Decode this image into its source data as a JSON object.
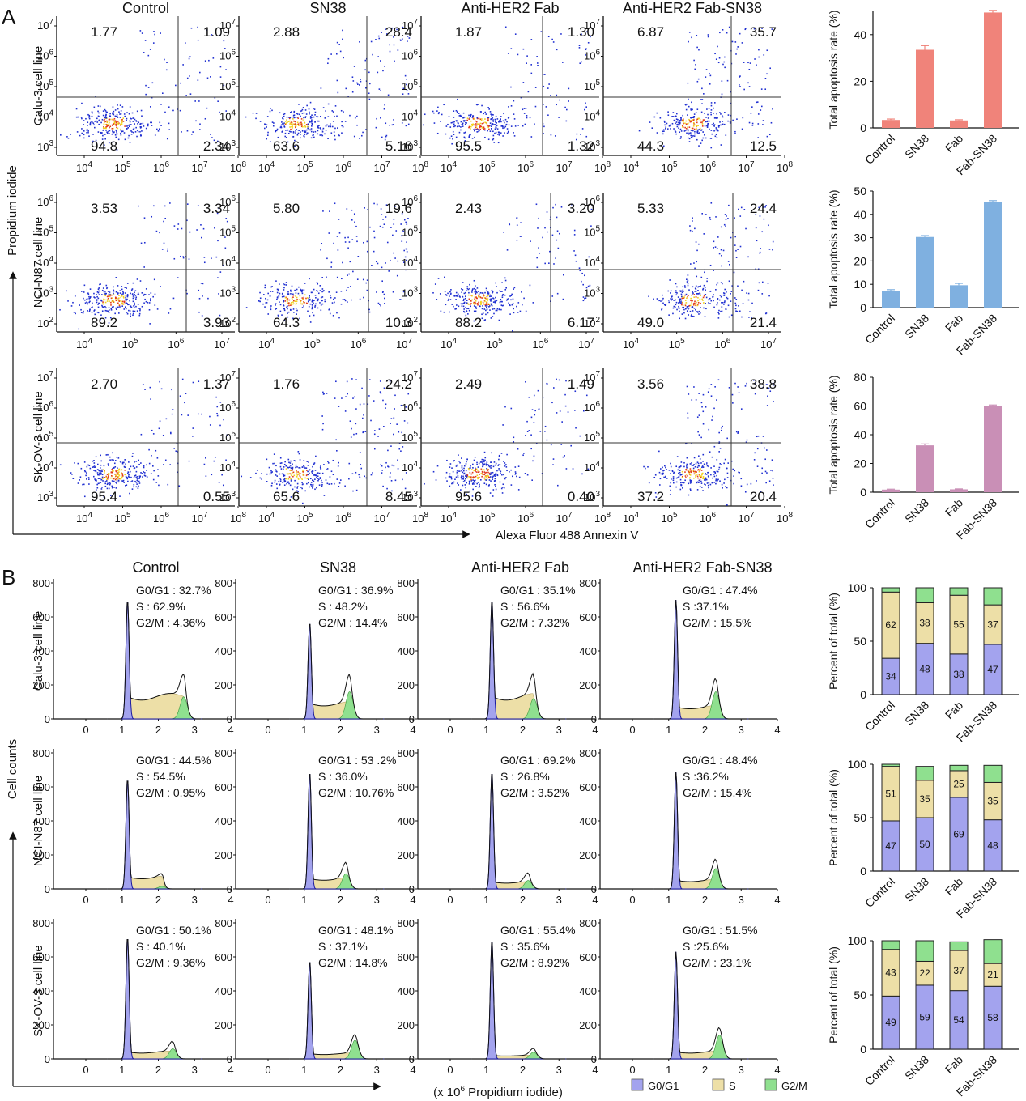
{
  "panel_a_letter": "A",
  "panel_b_letter": "B",
  "columns": [
    "Control",
    "SN38",
    "Anti-HER2 Fab",
    "Anti-HER2 Fab-SN38"
  ],
  "rows": [
    "Calu-3 cell line",
    "NCI-N87 cell line",
    "SK-OV-3 cell line"
  ],
  "colors": {
    "apoptosis": [
      "#f0837a",
      "#7fb0e0",
      "#c98fb6"
    ],
    "g0g1": "#a3a3ee",
    "s": "#eddfa7",
    "g2m": "#8fe08f",
    "dots": "#1f2fd1"
  },
  "flow": {
    "y_axis_title": "Propidium iodide",
    "x_axis_title": "Alexa Fluor 488 Annexin V",
    "x_ticks": [
      "10<sup>4</sup>",
      "10<sup>5</sup>",
      "10<sup>6</sup>",
      "10<sup>7</sup>",
      "10<sup>8</sup>"
    ],
    "rows": [
      {
        "y_ticks": [
          [
            "10",
            "7"
          ],
          [
            "10",
            "6"
          ],
          [
            "10",
            "5"
          ],
          [
            "10",
            "4"
          ],
          [
            "10",
            "3"
          ]
        ],
        "x_ticks": [
          [
            "10",
            "4"
          ],
          [
            "10",
            "5"
          ],
          [
            "10",
            "6"
          ],
          [
            "10",
            "7"
          ],
          [
            "10",
            "8"
          ]
        ],
        "panels": [
          {
            "ul": "1.77",
            "ur": "1.09",
            "ll": "94.8",
            "lr": "2.34"
          },
          {
            "ul": "2.88",
            "ur": "28.4",
            "ll": "63.6",
            "lr": "5.16"
          },
          {
            "ul": "1.87",
            "ur": "1.30",
            "ll": "95.5",
            "lr": "1.32"
          },
          {
            "ul": "6.87",
            "ur": "35.7",
            "ll": "44.3",
            "lr": "12.5"
          }
        ]
      },
      {
        "y_ticks": [
          [
            "10",
            "6"
          ],
          [
            "10",
            "5"
          ],
          [
            "10",
            "4"
          ],
          [
            "10",
            "3"
          ],
          [
            "10",
            "2"
          ]
        ],
        "x_ticks": [
          [
            "10",
            "4"
          ],
          [
            "10",
            "5"
          ],
          [
            "10",
            "6"
          ],
          [
            "10",
            "7"
          ]
        ],
        "panels": [
          {
            "ul": "3.53",
            "ur": "3.34",
            "ll": "89.2",
            "lr": "3.93"
          },
          {
            "ul": "5.80",
            "ur": "19.6",
            "ll": "64.3",
            "lr": "10.3"
          },
          {
            "ul": "2.43",
            "ur": "3.20",
            "ll": "88.2",
            "lr": "6.17"
          },
          {
            "ul": "5.33",
            "ur": "24.4",
            "ll": "49.0",
            "lr": "21.4"
          }
        ]
      },
      {
        "y_ticks": [
          [
            "10",
            "7"
          ],
          [
            "10",
            "6"
          ],
          [
            "10",
            "5"
          ],
          [
            "10",
            "4"
          ],
          [
            "10",
            "3"
          ]
        ],
        "x_ticks": [
          [
            "10",
            "4"
          ],
          [
            "10",
            "5"
          ],
          [
            "10",
            "6"
          ],
          [
            "10",
            "7"
          ],
          [
            "10",
            "8"
          ]
        ],
        "panels": [
          {
            "ul": "2.70",
            "ur": "1.37",
            "ll": "95.4",
            "lr": "0.55"
          },
          {
            "ul": "1.76",
            "ur": "24.2",
            "ll": "65.6",
            "lr": "8.45"
          },
          {
            "ul": "2.49",
            "ur": "1.49",
            "ll": "95.6",
            "lr": "0.40"
          },
          {
            "ul": "3.56",
            "ur": "38.8",
            "ll": "37.2",
            "lr": "20.4"
          }
        ]
      }
    ]
  },
  "cycle": {
    "y_axis_title": "Cell counts",
    "x_axis_title_prefix": "(x 10",
    "x_axis_title_exp": "6",
    "x_axis_title_suffix": "  Propidium iodide)",
    "y_ticks": [
      "800",
      "600",
      "400",
      "200",
      "0"
    ],
    "x_ticks": [
      "0",
      "1",
      "2",
      "3",
      "4"
    ],
    "legend": [
      "G0/G1",
      "S",
      "G2/M"
    ],
    "rows": [
      {
        "panels": [
          {
            "g0g1": "G0/G1 : 32.7%",
            "s": "S : 62.9%",
            "g2m": "G2/M : 4.36%"
          },
          {
            "g0g1": "G0/G1 : 36.9%",
            "s": "S : 48.2%",
            "g2m": "G2/M : 14.4%"
          },
          {
            "g0g1": "G0/G1 : 35.1%",
            "s": "S : 56.6%",
            "g2m": "G2/M : 7.32%"
          },
          {
            "g0g1": "G0/G1 : 47.4%",
            "s": "S :37.1%",
            "g2m": "G2/M : 15.5%"
          }
        ]
      },
      {
        "panels": [
          {
            "g0g1": "G0/G1 : 44.5%",
            "s": "S : 54.5%",
            "g2m": "G2/M : 0.95%"
          },
          {
            "g0g1": "G0/G1 : 53 .2%",
            "s": "S : 36.0%",
            "g2m": "G2/M : 10.76%"
          },
          {
            "g0g1": "G0/G1 : 69.2%",
            "s": "S : 26.8%",
            "g2m": "G2/M : 3.52%"
          },
          {
            "g0g1": "G0/G1 : 48.4%",
            "s": "S :36.2%",
            "g2m": "G2/M : 15.4%"
          }
        ]
      },
      {
        "panels": [
          {
            "g0g1": "G0/G1 : 50.1%",
            "s": "S : 40.1%",
            "g2m": "G2/M : 9.36%"
          },
          {
            "g0g1": "G0/G1 : 48.1%",
            "s": "S : 37.1%",
            "g2m": "G2/M : 14.8%"
          },
          {
            "g0g1": "G0/G1 : 55.4%",
            "s": "S : 35.6%",
            "g2m": "G2/M : 8.92%"
          },
          {
            "g0g1": "G0/G1 : 51.5%",
            "s": "S :25.6%",
            "g2m": "G2/M : 23.1%"
          }
        ]
      }
    ]
  },
  "chart_data": [
    {
      "type": "bar",
      "ylabel": "Total apoptosis rate (%)",
      "categories": [
        "Control",
        "SN38",
        "Fab",
        "Fab-SN38"
      ],
      "values": [
        3.4,
        33.5,
        3.2,
        49.5
      ],
      "errors": [
        0.4,
        1.8,
        0.3,
        0.9
      ],
      "ylim": [
        0,
        50
      ],
      "yticks": [
        0,
        20,
        40
      ]
    },
    {
      "type": "bar",
      "ylabel": "Total apoptosis rate (%)",
      "categories": [
        "Control",
        "SN38",
        "Fab",
        "Fab-SN38"
      ],
      "values": [
        7.2,
        30.3,
        9.6,
        45.2
      ],
      "errors": [
        0.5,
        0.6,
        0.8,
        0.7
      ],
      "ylim": [
        0,
        50
      ],
      "yticks": [
        0,
        10,
        20,
        30,
        40,
        50
      ]
    },
    {
      "type": "bar",
      "ylabel": "Total apoptosis rate (%)",
      "categories": [
        "Control",
        "SN38",
        "Fab",
        "Fab-SN38"
      ],
      "values": [
        1.8,
        32.6,
        2.0,
        60.2
      ],
      "errors": [
        0.3,
        1.0,
        0.3,
        0.5
      ],
      "ylim": [
        0,
        80
      ],
      "yticks": [
        0,
        20,
        40,
        60,
        80
      ]
    },
    {
      "type": "bar",
      "stacked": true,
      "ylabel": "Percent of total (%)",
      "categories": [
        "Control",
        "SN38",
        "Fab",
        "Fab-SN38"
      ],
      "ylim": [
        0,
        100
      ],
      "yticks": [
        0,
        50,
        100
      ],
      "series": [
        {
          "name": "G0/G1",
          "values": [
            34,
            48,
            38,
            47
          ]
        },
        {
          "name": "S",
          "values": [
            62,
            38,
            55,
            37
          ]
        },
        {
          "name": "G2/M",
          "values": [
            4,
            14,
            7,
            16
          ]
        }
      ]
    },
    {
      "type": "bar",
      "stacked": true,
      "ylabel": "Percent of total (%)",
      "categories": [
        "Control",
        "SN38",
        "Fab",
        "Fab-SN38"
      ],
      "ylim": [
        0,
        100
      ],
      "yticks": [
        0,
        50,
        100
      ],
      "series": [
        {
          "name": "G0/G1",
          "values": [
            47,
            50,
            69,
            48
          ]
        },
        {
          "name": "S",
          "values": [
            51,
            35,
            25,
            35
          ]
        },
        {
          "name": "G2/M",
          "values": [
            2,
            13,
            5,
            16
          ]
        }
      ]
    },
    {
      "type": "bar",
      "stacked": true,
      "ylabel": "Percent of total (%)",
      "categories": [
        "Control",
        "SN38",
        "Fab",
        "Fab-SN38"
      ],
      "ylim": [
        0,
        100
      ],
      "yticks": [
        0,
        50,
        100
      ],
      "series": [
        {
          "name": "G0/G1",
          "values": [
            49,
            59,
            54,
            58
          ]
        },
        {
          "name": "S",
          "values": [
            43,
            22,
            37,
            21
          ]
        },
        {
          "name": "G2/M",
          "values": [
            8,
            19,
            8,
            22
          ]
        }
      ]
    }
  ]
}
